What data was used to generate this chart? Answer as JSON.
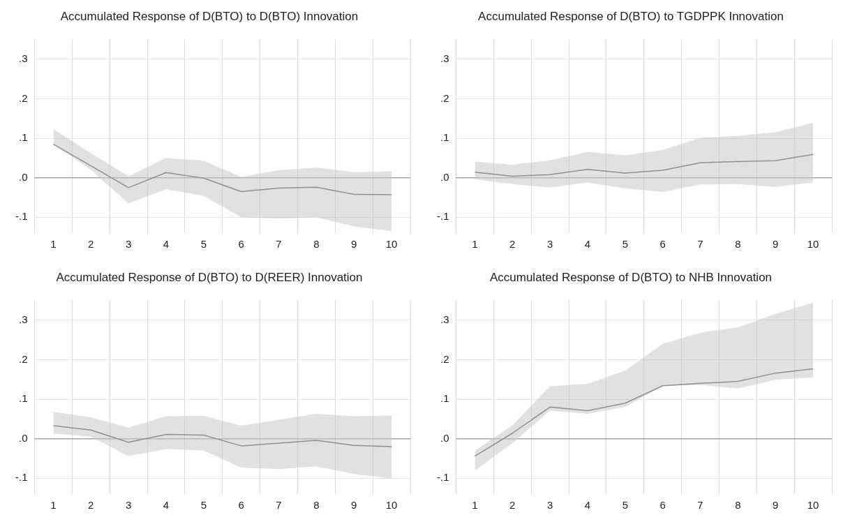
{
  "chart_data": [
    {
      "type": "line",
      "title": "Accumulated Response of D(BTO) to D(BTO) Innovation",
      "categories": [
        "1",
        "2",
        "3",
        "4",
        "5",
        "6",
        "7",
        "8",
        "9",
        "10"
      ],
      "series": [
        {
          "color": "#909090",
          "values": [
            0.085,
            0.03,
            -0.025,
            0.013,
            -0.001,
            -0.035,
            -0.026,
            -0.024,
            -0.042,
            -0.043
          ],
          "lower": [
            0.085,
            0.02,
            -0.065,
            -0.029,
            -0.046,
            -0.1,
            -0.103,
            -0.1,
            -0.123,
            -0.135
          ],
          "upper": [
            0.123,
            0.062,
            0.004,
            0.05,
            0.043,
            0.002,
            0.019,
            0.026,
            0.014,
            0.016
          ]
        }
      ],
      "ylim": [
        -0.14,
        0.35
      ],
      "yticks": [
        {
          "value": -0.1,
          "label": "-.1"
        },
        {
          "value": 0,
          "label": ".0"
        },
        {
          "value": 0.1,
          "label": ".1"
        },
        {
          "value": 0.2,
          "label": ".2"
        },
        {
          "value": 0.3,
          "label": ".3"
        }
      ],
      "ref_lines": [
        {
          "axis": "y",
          "value": 0,
          "label": null,
          "color": "#a6a6a6"
        }
      ],
      "grid": true,
      "legend": false,
      "marker": "none",
      "line_style": "solid"
    },
    {
      "type": "line",
      "title": "Accumulated Response of D(BTO) to TGDPPK Innovation",
      "categories": [
        "1",
        "2",
        "3",
        "4",
        "5",
        "6",
        "7",
        "8",
        "9",
        "10"
      ],
      "series": [
        {
          "color": "#909090",
          "values": [
            0.014,
            0.004,
            0.008,
            0.021,
            0.012,
            0.019,
            0.038,
            0.041,
            0.043,
            0.059
          ],
          "lower": [
            -0.004,
            -0.016,
            -0.025,
            -0.012,
            -0.027,
            -0.036,
            -0.017,
            -0.016,
            -0.023,
            -0.012
          ],
          "upper": [
            0.041,
            0.033,
            0.044,
            0.065,
            0.057,
            0.07,
            0.101,
            0.106,
            0.115,
            0.139
          ]
        }
      ],
      "ylim": [
        -0.14,
        0.35
      ],
      "yticks": [
        {
          "value": -0.1,
          "label": "-.1"
        },
        {
          "value": 0,
          "label": ".0"
        },
        {
          "value": 0.1,
          "label": ".1"
        },
        {
          "value": 0.2,
          "label": ".2"
        },
        {
          "value": 0.3,
          "label": ".3"
        }
      ],
      "ref_lines": [
        {
          "axis": "y",
          "value": 0,
          "label": null,
          "color": "#a6a6a6"
        }
      ],
      "grid": true,
      "legend": false,
      "marker": "none",
      "line_style": "solid"
    },
    {
      "type": "line",
      "title": "Accumulated Response of D(BTO) to D(REER) Innovation",
      "categories": [
        "1",
        "2",
        "3",
        "4",
        "5",
        "6",
        "7",
        "8",
        "9",
        "10"
      ],
      "series": [
        {
          "color": "#909090",
          "values": [
            0.033,
            0.022,
            -0.009,
            0.011,
            0.009,
            -0.018,
            -0.011,
            -0.004,
            -0.017,
            -0.02
          ],
          "lower": [
            0.013,
            0.005,
            -0.044,
            -0.026,
            -0.03,
            -0.073,
            -0.077,
            -0.07,
            -0.089,
            -0.101
          ],
          "upper": [
            0.068,
            0.054,
            0.028,
            0.057,
            0.058,
            0.033,
            0.048,
            0.063,
            0.057,
            0.059
          ]
        }
      ],
      "ylim": [
        -0.14,
        0.35
      ],
      "yticks": [
        {
          "value": -0.1,
          "label": "-.1"
        },
        {
          "value": 0,
          "label": ".0"
        },
        {
          "value": 0.1,
          "label": ".1"
        },
        {
          "value": 0.2,
          "label": ".2"
        },
        {
          "value": 0.3,
          "label": ".3"
        }
      ],
      "ref_lines": [
        {
          "axis": "y",
          "value": 0,
          "label": null,
          "color": "#a6a6a6"
        }
      ],
      "grid": true,
      "legend": false,
      "marker": "none",
      "line_style": "solid"
    },
    {
      "type": "line",
      "title": "Accumulated Response of D(BTO) to NHB Innovation",
      "categories": [
        "1",
        "2",
        "3",
        "4",
        "5",
        "6",
        "7",
        "8",
        "9",
        "10"
      ],
      "series": [
        {
          "color": "#909090",
          "values": [
            -0.044,
            0.014,
            0.08,
            0.071,
            0.09,
            0.134,
            0.14,
            0.145,
            0.166,
            0.177
          ],
          "lower": [
            -0.081,
            -0.011,
            0.071,
            0.063,
            0.08,
            0.134,
            0.136,
            0.127,
            0.149,
            0.155
          ],
          "upper": [
            -0.03,
            0.034,
            0.133,
            0.139,
            0.172,
            0.24,
            0.268,
            0.282,
            0.316,
            0.344
          ]
        }
      ],
      "ylim": [
        -0.14,
        0.35
      ],
      "yticks": [
        {
          "value": -0.1,
          "label": "-.1"
        },
        {
          "value": 0,
          "label": ".0"
        },
        {
          "value": 0.1,
          "label": ".1"
        },
        {
          "value": 0.2,
          "label": ".2"
        },
        {
          "value": 0.3,
          "label": ".3"
        }
      ],
      "ref_lines": [
        {
          "axis": "y",
          "value": 0,
          "label": null,
          "color": "#a6a6a6"
        }
      ],
      "grid": true,
      "legend": false,
      "marker": "none",
      "line_style": "solid"
    }
  ]
}
